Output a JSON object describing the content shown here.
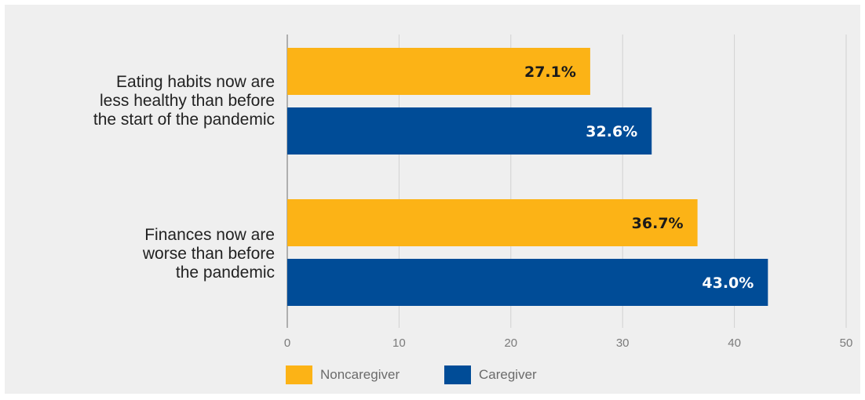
{
  "chart_data": {
    "type": "bar",
    "orientation": "horizontal",
    "categories": [
      "Eating habits now are\nless healthy than before\nthe start of the pandemic",
      "Finances now are\nworse than before\nthe pandemic"
    ],
    "series": [
      {
        "name": "Noncaregiver",
        "values": [
          27.1,
          36.7
        ],
        "labels": [
          "27.1%",
          "36.7%"
        ],
        "color": "#fcb316",
        "label_color": "#1a1a1a"
      },
      {
        "name": "Caregiver",
        "values": [
          32.6,
          43.0
        ],
        "labels": [
          "32.6%",
          "43.0%"
        ],
        "color": "#004c97",
        "label_color": "#ffffff"
      }
    ],
    "xlim": [
      0,
      50
    ],
    "x_ticks": [
      "0",
      "10",
      "20",
      "30",
      "40",
      "50"
    ],
    "grid": true,
    "legend_position": "bottom-left",
    "background": "#efefef",
    "gridline_color": "#d2d2d2"
  }
}
